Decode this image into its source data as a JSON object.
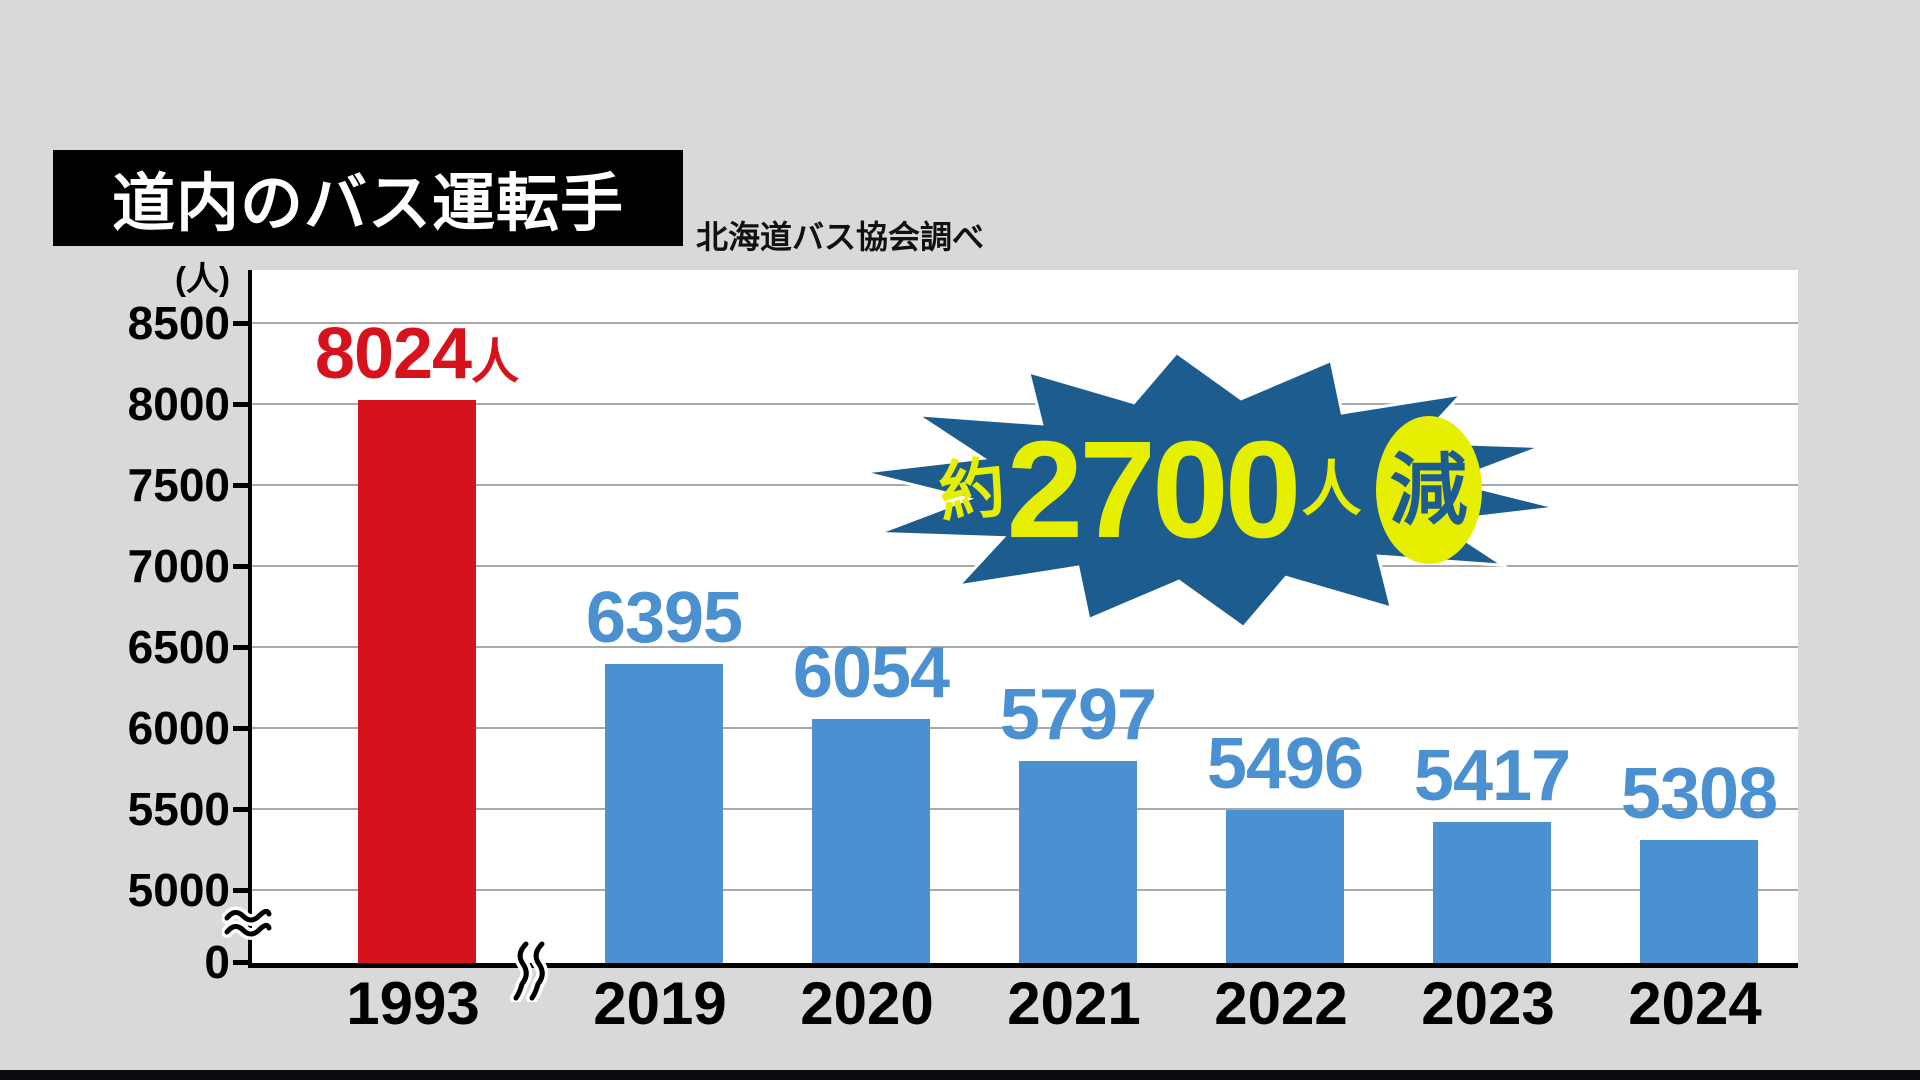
{
  "header": {
    "title": "道内のバス運転手",
    "source": "北海道バス協会調べ"
  },
  "callout": {
    "prefix": "約",
    "number": "2700",
    "unit": "人",
    "badge": "減",
    "full_text": "約2700人減"
  },
  "chart_data": {
    "type": "bar",
    "title": "道内のバス運転手",
    "source": "北海道バス協会調べ",
    "unit": "人",
    "categories": [
      "1993",
      "2019",
      "2020",
      "2021",
      "2022",
      "2023",
      "2024"
    ],
    "values": [
      8024,
      6395,
      6054,
      5797,
      5496,
      5417,
      5308
    ],
    "bar_labels": [
      "8024",
      "6395",
      "6054",
      "5797",
      "5496",
      "5417",
      "5308"
    ],
    "bar_label_suffixes": [
      "人",
      "",
      "",
      "",
      "",
      "",
      ""
    ],
    "bar_colors": [
      "#d6131d",
      "#4b90d0",
      "#4b90d0",
      "#4b90d0",
      "#4b90d0",
      "#4b90d0",
      "#4b90d0"
    ],
    "y_axis": {
      "unit_label": "(人)",
      "ticks": [
        8500,
        8000,
        7500,
        7000,
        6500,
        6000,
        5500,
        5000
      ],
      "zero_label": "0",
      "broken_axis_between": [
        0,
        5000
      ]
    },
    "x_axis_break_between": [
      "1993",
      "2019"
    ],
    "annotation": "約2700人減",
    "ylim_visible": [
      5000,
      8500
    ],
    "grid": true,
    "legend": false
  },
  "colors": {
    "red": "#d6131d",
    "blue": "#4b90d0",
    "starburst_fill": "#1d5c8e",
    "callout_yellow": "#e7ef00",
    "background": "#d9d9d9",
    "grid": "#a9a9a9",
    "axis": "#000000"
  }
}
